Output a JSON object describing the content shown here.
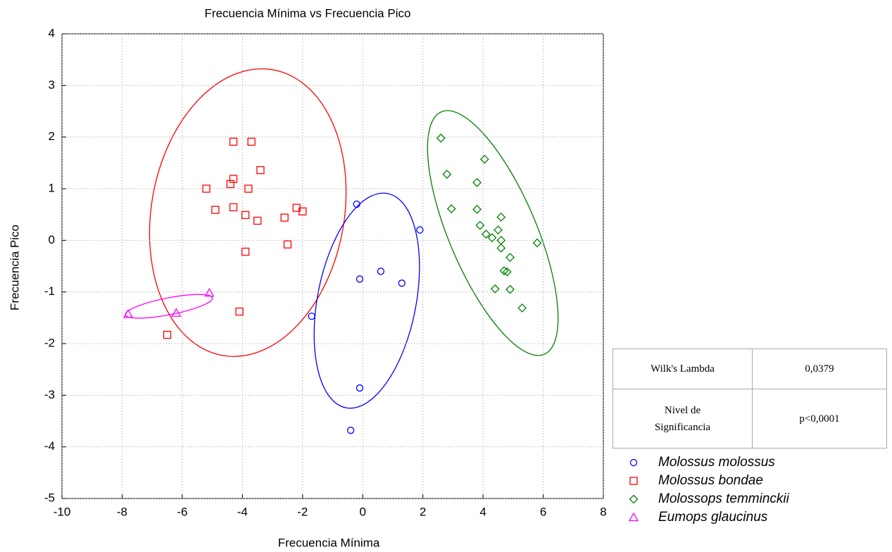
{
  "chart_data": {
    "type": "scatter",
    "title": "Frecuencia Mínima vs Frecuencia Pico",
    "x_label": "Frecuencia Mínima",
    "y_label": "Frecuencia Pico",
    "xlim": [
      -10,
      8
    ],
    "ylim": [
      -5,
      4
    ],
    "xticks": [
      -10,
      -8,
      -6,
      -4,
      -2,
      0,
      2,
      4,
      6,
      8
    ],
    "yticks": [
      -5,
      -4,
      -3,
      -2,
      -1,
      0,
      1,
      2,
      3,
      4
    ],
    "grid": true,
    "series": [
      {
        "name": "Molossus molossus",
        "color": "#0000ff",
        "marker": "circle",
        "x": [
          -0.2,
          1.9,
          -0.1,
          0.6,
          1.3,
          -1.7,
          -0.1,
          -0.4
        ],
        "values": [
          0.7,
          0.2,
          -0.75,
          -0.6,
          -0.83,
          -1.47,
          -2.86,
          -3.68
        ]
      },
      {
        "name": "Molossus bondae",
        "color": "#ff0000",
        "marker": "square",
        "x": [
          -4.3,
          -3.7,
          -3.4,
          -4.3,
          -4.4,
          -5.2,
          -3.8,
          -4.9,
          -4.3,
          -3.9,
          -3.5,
          -2.2,
          -2.0,
          -2.6,
          -2.5,
          -3.9,
          -4.1,
          -6.5
        ],
        "values": [
          1.91,
          1.91,
          1.36,
          1.19,
          1.09,
          1.0,
          1.0,
          0.59,
          0.64,
          0.49,
          0.38,
          0.63,
          0.56,
          0.44,
          -0.08,
          -0.22,
          -1.38,
          -1.83
        ]
      },
      {
        "name": "Molossops temminckii",
        "color": "#008000",
        "marker": "diamond",
        "x": [
          2.6,
          4.05,
          2.8,
          3.8,
          2.95,
          3.8,
          4.6,
          3.9,
          4.5,
          4.1,
          4.3,
          4.6,
          4.6,
          5.8,
          4.9,
          4.7,
          4.8,
          4.9,
          4.4,
          5.3
        ],
        "values": [
          1.98,
          1.57,
          1.28,
          1.12,
          0.61,
          0.6,
          0.45,
          0.29,
          0.2,
          0.12,
          0.05,
          0.0,
          -0.15,
          -0.05,
          -0.33,
          -0.59,
          -0.61,
          -0.95,
          -0.94,
          -1.31
        ]
      },
      {
        "name": "Eumops glaucinus",
        "color": "#ff00ff",
        "marker": "triangle",
        "x": [
          -5.1,
          -7.8,
          -6.2
        ],
        "values": [
          -1.02,
          -1.43,
          -1.41
        ]
      }
    ]
  },
  "table": {
    "rows": [
      [
        "Wilk's Lambda",
        "0,0379"
      ],
      [
        "Nivel de Significancia",
        "p<0,0001"
      ]
    ]
  }
}
